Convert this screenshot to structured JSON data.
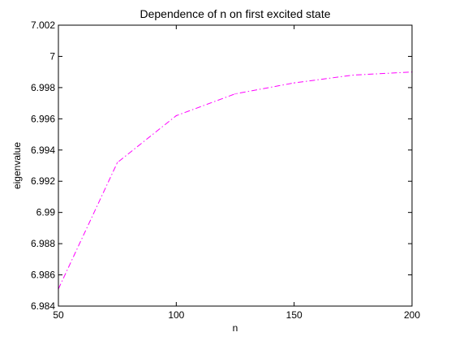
{
  "chart_data": {
    "type": "line",
    "title": "Dependence of n on first excited state",
    "xlabel": "n",
    "ylabel": "eigenvalue",
    "xlim": [
      50,
      200
    ],
    "ylim": [
      6.984,
      7.002
    ],
    "x_ticks": [
      "50",
      "100",
      "150",
      "200"
    ],
    "y_ticks": [
      "6.984",
      "6.986",
      "6.988",
      "6.99",
      "6.992",
      "6.994",
      "6.996",
      "6.998",
      "7",
      "7.002"
    ],
    "grid": false,
    "series": [
      {
        "color": "#ff00ff",
        "line_style": "dash-dot",
        "x": [
          50,
          75,
          100,
          125,
          150,
          175,
          200
        ],
        "y": [
          6.9851,
          6.9932,
          6.9962,
          6.9976,
          6.9983,
          6.9988,
          6.999
        ]
      }
    ]
  }
}
